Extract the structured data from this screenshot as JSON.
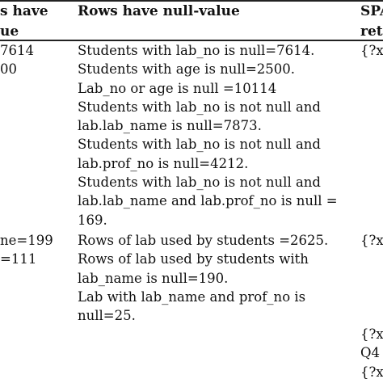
{
  "header": {
    "col1": [
      "s have",
      "ue"
    ],
    "col2": "Rows have null-value",
    "col3": [
      "SPA",
      "retu"
    ]
  },
  "row1": {
    "col1": [
      "7614",
      "00"
    ],
    "col2": [
      "Students with lab_no is null=7614.",
      "Students with age is null=2500.",
      "Lab_no or age is null =10114",
      "Students with lab_no is not null and",
      "lab.lab_name is null=7873.",
      "Students with lab_no is not null and",
      "lab.prof_no is null=4212.",
      "Students with lab_no is not null and",
      "lab.lab_name and lab.prof_no is null =",
      "169."
    ],
    "col3": [
      "{?x"
    ]
  },
  "row2": {
    "col1": [
      "ne=199",
      "=111"
    ],
    "col2": [
      "Rows of lab used by students =2625.",
      "Rows of lab used by students with",
      "lab_name is null=190.",
      "Lab with lab_name and prof_no is",
      "null=25."
    ],
    "col3": [
      "{?x"
    ]
  },
  "row3": {
    "col3": [
      "{?x",
      "Q4",
      "{?x"
    ]
  }
}
